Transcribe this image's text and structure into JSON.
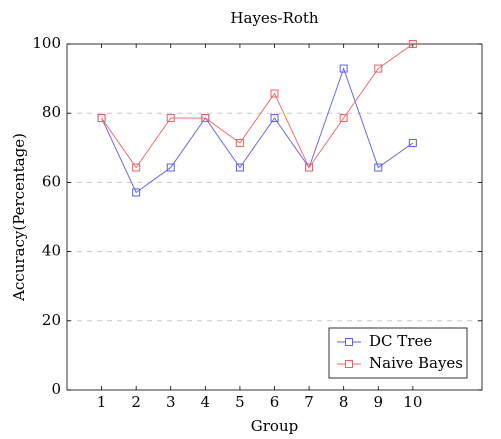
{
  "chart_data": {
    "type": "line",
    "title": "Hayes-Roth",
    "xlabel": "Group",
    "ylabel": "Accuracy(Percentage)",
    "x": [
      1,
      2,
      3,
      4,
      5,
      6,
      7,
      8,
      9,
      10
    ],
    "x_ticks": [
      "1",
      "2",
      "3",
      "4",
      "5",
      "6",
      "7",
      "8",
      "9",
      "10"
    ],
    "y_ticks": [
      "0",
      "20",
      "40",
      "60",
      "80",
      "100"
    ],
    "xlim": [
      0,
      12
    ],
    "ylim": [
      0,
      100
    ],
    "grid": "horizontal dashed",
    "legend_position": "bottom-right",
    "series": [
      {
        "name": "DC Tree",
        "color": "#5b5bf0",
        "marker": "square",
        "values": [
          78.6,
          57.1,
          64.3,
          78.6,
          64.3,
          78.6,
          64.3,
          92.9,
          64.3,
          71.4
        ]
      },
      {
        "name": "Naive Bayes",
        "color": "#f06060",
        "marker": "square",
        "values": [
          78.6,
          64.3,
          78.6,
          78.6,
          71.4,
          85.7,
          64.3,
          78.6,
          92.9,
          100
        ]
      }
    ]
  }
}
